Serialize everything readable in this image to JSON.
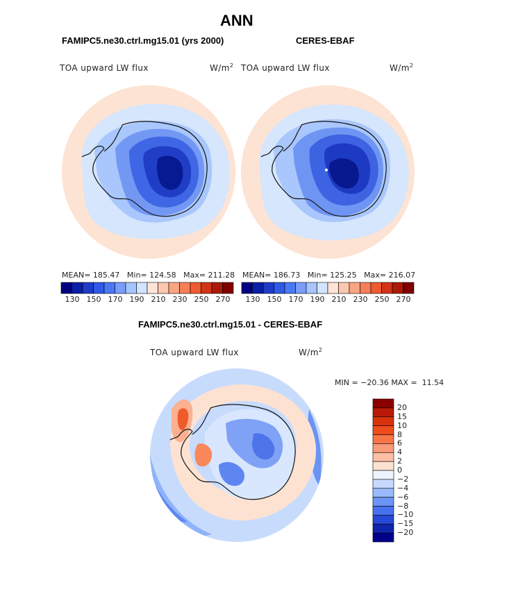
{
  "page_title": "ANN",
  "chart_data": [
    {
      "type": "heatmap",
      "projection": "south-polar-stereographic",
      "title": "FAMIPC5.ne30.ctrl.mg15.01 (yrs 2000)",
      "field": "TOA upward LW flux",
      "units_base": "W/m",
      "units_exp": "2",
      "stats": {
        "mean_label": "MEAN=",
        "mean": "185.47",
        "min_label": "Min=",
        "min": "124.58",
        "max_label": "Max=",
        "max": "211.28"
      },
      "colorbar_ticks": [
        "130",
        "150",
        "170",
        "190",
        "210",
        "230",
        "250",
        "270"
      ],
      "colorbar_colors": [
        "#000080",
        "#0a1fa8",
        "#1e3cc8",
        "#2f5ae6",
        "#4b78f5",
        "#7a9cfa",
        "#a6c4fd",
        "#d2e4fe",
        "#fde4d6",
        "#fcc7ae",
        "#f9a584",
        "#f77f58",
        "#ef5a32",
        "#d23419",
        "#ac1a0a",
        "#7f0000"
      ]
    },
    {
      "type": "heatmap",
      "projection": "south-polar-stereographic",
      "title": "CERES-EBAF",
      "field": "TOA upward LW flux",
      "units_base": "W/m",
      "units_exp": "2",
      "stats": {
        "mean_label": "MEAN=",
        "mean": "186.73",
        "min_label": "Min=",
        "min": "125.25",
        "max_label": "Max=",
        "max": "216.07"
      },
      "colorbar_ticks": [
        "130",
        "150",
        "170",
        "190",
        "210",
        "230",
        "250",
        "270"
      ],
      "colorbar_colors": [
        "#000080",
        "#0a1fa8",
        "#1e3cc8",
        "#2f5ae6",
        "#4b78f5",
        "#7a9cfa",
        "#a6c4fd",
        "#d2e4fe",
        "#fde4d6",
        "#fcc7ae",
        "#f9a584",
        "#f77f58",
        "#ef5a32",
        "#d23419",
        "#ac1a0a",
        "#7f0000"
      ]
    },
    {
      "type": "heatmap",
      "projection": "south-polar-stereographic",
      "title": "FAMIPC5.ne30.ctrl.mg15.01 - CERES-EBAF",
      "field": "TOA upward LW flux",
      "units_base": "W/m",
      "units_exp": "2",
      "range_text": {
        "min_label": "MIN =",
        "min": "−20.36",
        "max_label": "MAX =",
        "max": "11.54"
      },
      "colorbar_ticks": [
        "20",
        "15",
        "10",
        "8",
        "6",
        "4",
        "2",
        "0",
        "−2",
        "−4",
        "−6",
        "−8",
        "−10",
        "−15",
        "−20"
      ],
      "colorbar_colors": [
        "#8b0000",
        "#b81a06",
        "#d9330c",
        "#ef4d1c",
        "#f77546",
        "#fb9a78",
        "#fcbfa4",
        "#fde2d2",
        "#eef4fe",
        "#c5dafe",
        "#98bafc",
        "#6c94f5",
        "#4670ec",
        "#2549d4",
        "#0d26ac",
        "#00008b"
      ]
    }
  ]
}
